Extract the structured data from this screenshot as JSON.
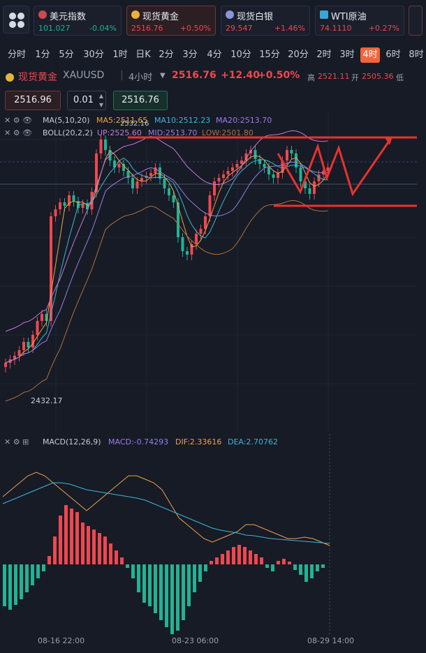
{
  "tickers": [
    {
      "name": "美元指数",
      "price": "101.027",
      "change": "-0.04%",
      "dir": "down",
      "icon": "us-flag-icon",
      "active": false
    },
    {
      "name": "现货黄金",
      "price": "2516.76",
      "change": "+0.50%",
      "dir": "up",
      "icon": "gold-coin-icon",
      "active": true
    },
    {
      "name": "现货白银",
      "price": "29.547",
      "change": "+1.46%",
      "dir": "up",
      "icon": "silver-icon",
      "active": false
    },
    {
      "name": "WTI原油",
      "price": "74.1110",
      "change": "+0.27%",
      "dir": "up",
      "icon": "oil-icon",
      "active": false
    }
  ],
  "periods": [
    "分时",
    "1分",
    "5分",
    "30分",
    "1时",
    "日K",
    "2分",
    "3分",
    "4分",
    "10分",
    "15分",
    "20分",
    "2时",
    "3时",
    "4时",
    "6时",
    "8时"
  ],
  "active_period": "4时",
  "symbol": {
    "name": "现货黄金",
    "code": "XAUUSD",
    "interval": "4小时",
    "price": "2516.76",
    "change": "+12.40",
    "change_pct": "+0.50%",
    "high_label": "高",
    "high": "2521.11",
    "open_label": "开",
    "open": "2505.36",
    "low_label": "低"
  },
  "order": {
    "sell_price": "2516.96",
    "lot": "0.01",
    "buy_price": "2516.76"
  },
  "indicators": {
    "ma_title": "MA(5,10,20)",
    "ma5": "MA5:2511.65",
    "ma10": "MA10:2512.23",
    "ma20": "MA20:2513.70",
    "boll_title": "BOLL(20,2,2)",
    "boll_up": "UP:2525.60",
    "boll_mid": "MID:2513.70",
    "boll_low": "LOW:2501.80",
    "price_marker": "2532.16",
    "low_marker": "2432.17",
    "macd_title": "MACD(12,26,9)",
    "macd": "MACD:-0.74293",
    "dif": "DIF:2.33616",
    "dea": "DEA:2.70762"
  },
  "x_labels": [
    "08-16 22:00",
    "08-23 06:00",
    "08-29 14:00"
  ],
  "colors": {
    "up": "#f0474e",
    "down": "#22b294",
    "bg": "#161b26",
    "accent": "#f2653a",
    "ma5": "#f0a24a",
    "ma10": "#3fb6d8",
    "ma20": "#9a7ce8",
    "boll_up": "#c77ad6",
    "boll_low": "#b0703a"
  }
}
